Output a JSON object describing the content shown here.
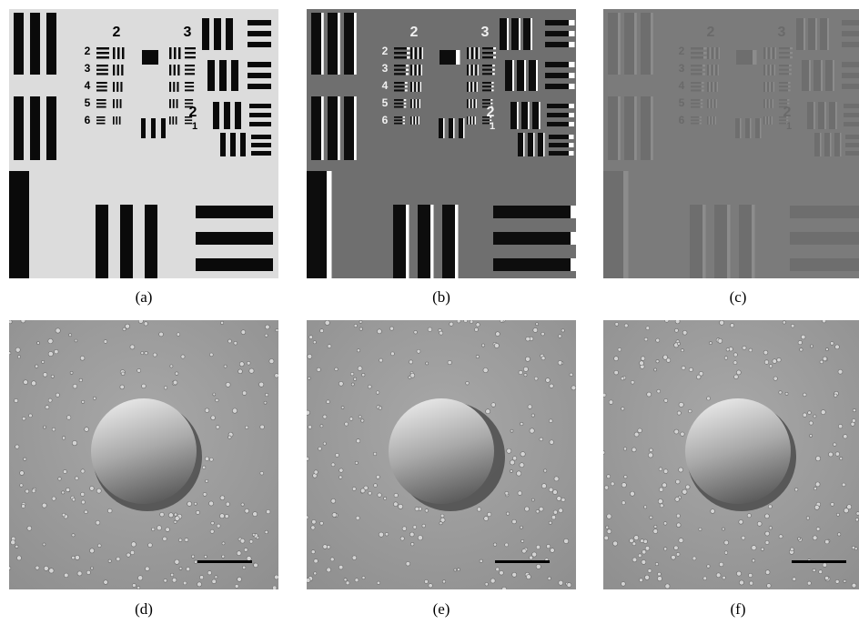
{
  "panels": [
    {
      "label": "(a)"
    },
    {
      "label": "(b)"
    },
    {
      "label": "(c)"
    },
    {
      "label": "(d)"
    },
    {
      "label": "(e)"
    },
    {
      "label": "(f)"
    }
  ],
  "target_labels": [
    "2",
    "3",
    "2",
    "3",
    "4",
    "5",
    "6",
    "2",
    "1"
  ]
}
